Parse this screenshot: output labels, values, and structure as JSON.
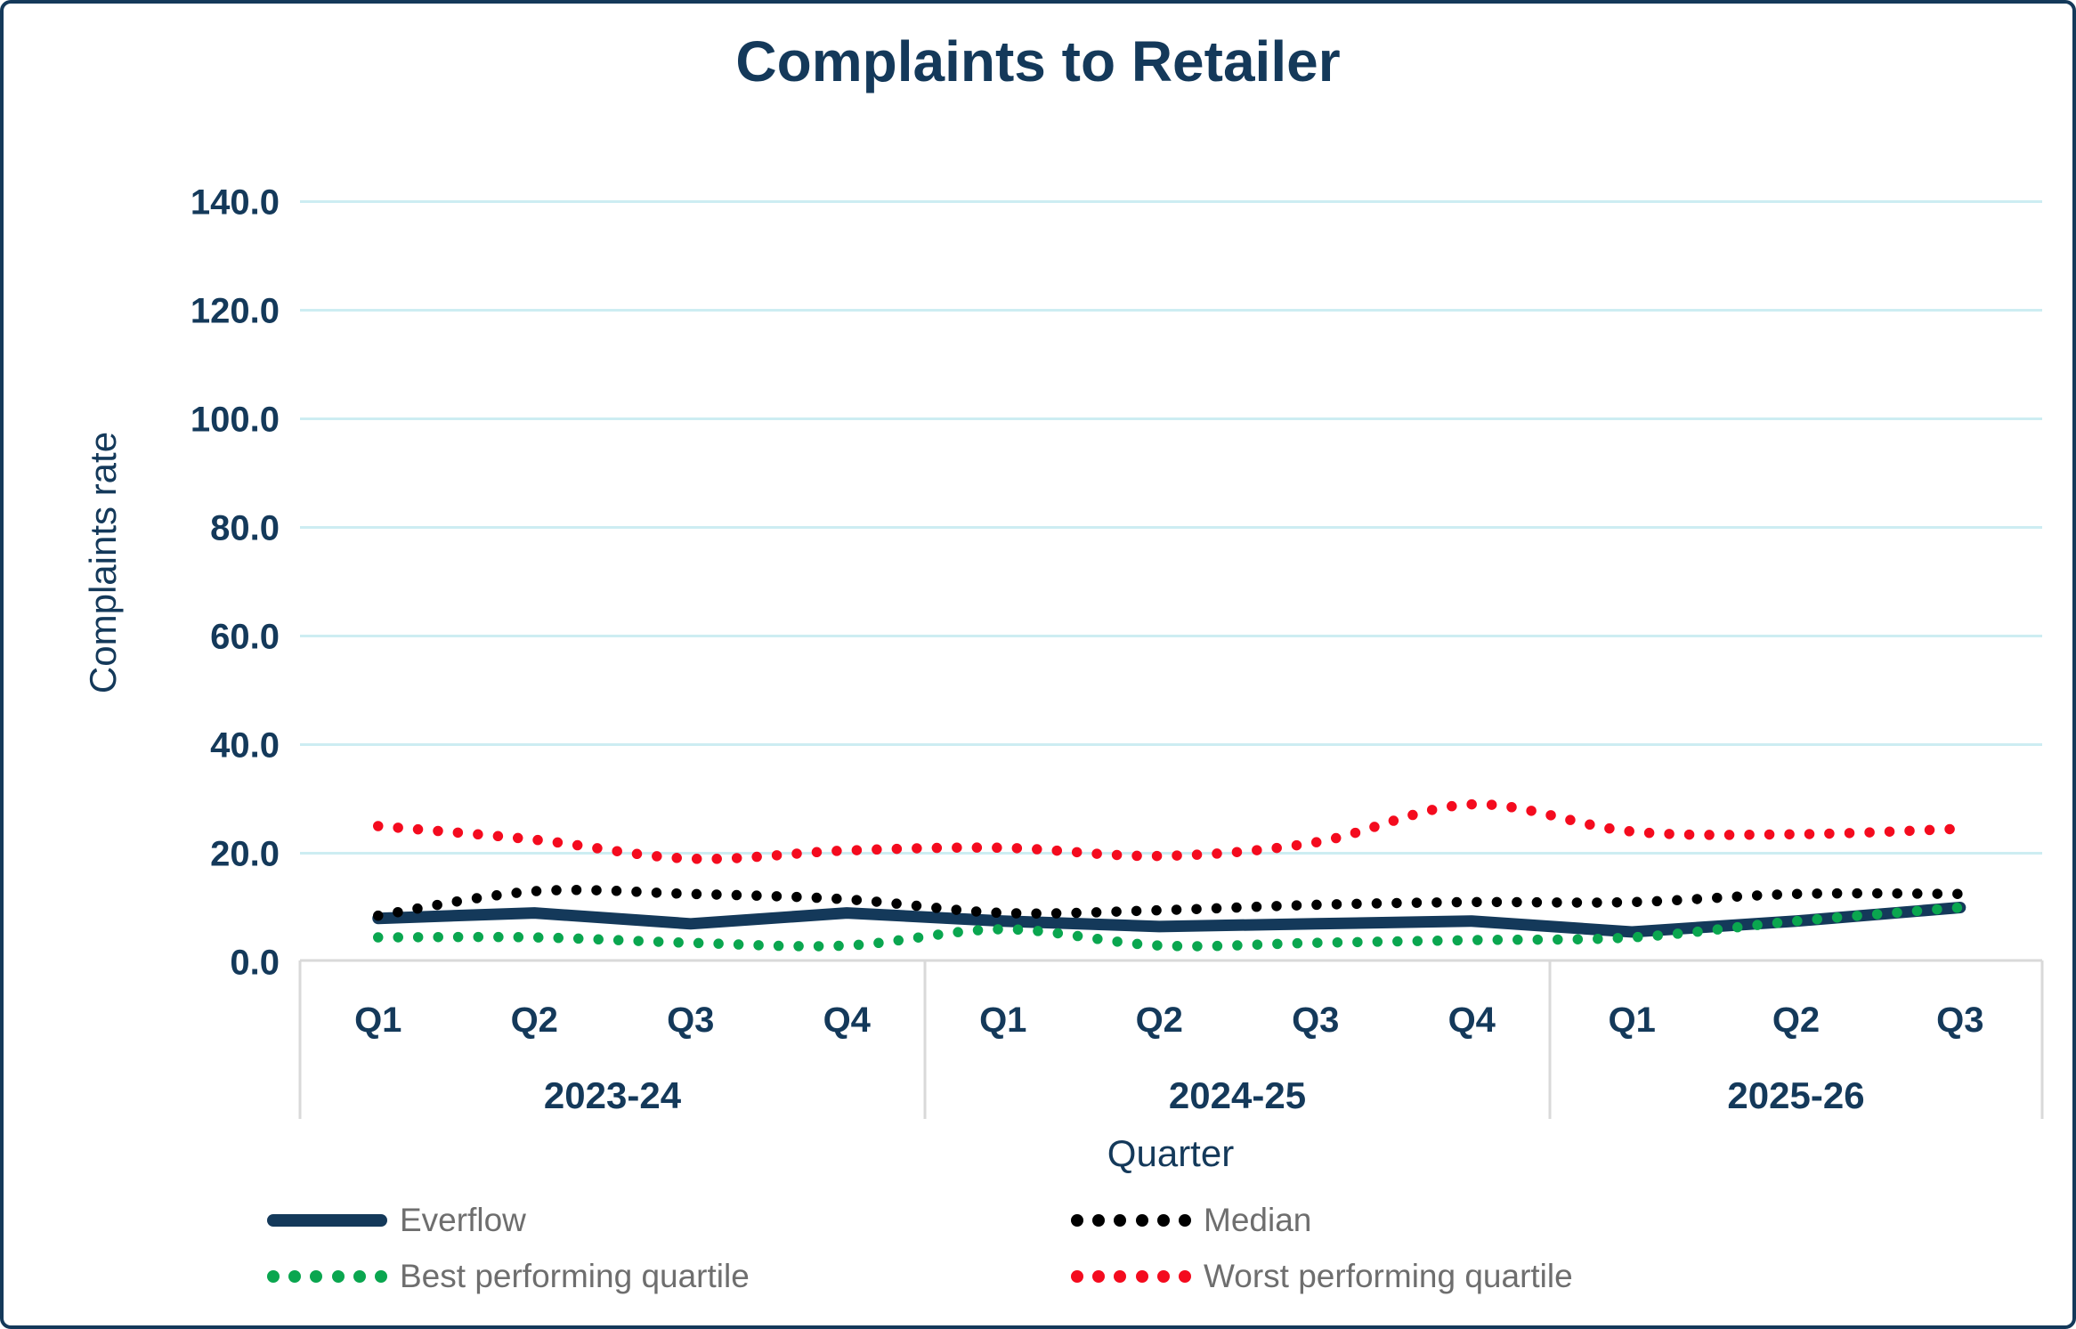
{
  "chart_data": {
    "type": "line",
    "title": "Complaints to Retailer",
    "ylabel": "Complaints rate",
    "xlabel": "Quarter",
    "ylim": [
      0,
      140
    ],
    "ytick_labels": [
      "0.0",
      "20.0",
      "40.0",
      "60.0",
      "80.0",
      "100.0",
      "120.0",
      "140.0"
    ],
    "grid": true,
    "legend_position": "bottom",
    "x_groups": [
      {
        "year": "2023-24",
        "quarters": [
          "Q1",
          "Q2",
          "Q3",
          "Q4"
        ]
      },
      {
        "year": "2024-25",
        "quarters": [
          "Q1",
          "Q2",
          "Q3",
          "Q4"
        ]
      },
      {
        "year": "2025-26",
        "quarters": [
          "Q1",
          "Q2",
          "Q3"
        ]
      }
    ],
    "categories": [
      "Q1",
      "Q2",
      "Q3",
      "Q4",
      "Q1",
      "Q2",
      "Q3",
      "Q4",
      "Q1",
      "Q2",
      "Q3"
    ],
    "series": [
      {
        "name": "Everflow",
        "style": "solid",
        "color": "#14395a",
        "values": [
          8,
          9,
          7,
          9,
          7.5,
          6.5,
          7,
          7.5,
          5.5,
          7.5,
          10
        ]
      },
      {
        "name": "Median",
        "style": "dotted",
        "color": "#000000",
        "values": [
          8.5,
          13,
          12.5,
          11.5,
          9,
          9.5,
          10.5,
          11,
          11,
          12.5,
          12.5
        ]
      },
      {
        "name": "Best performing quartile",
        "style": "dotted",
        "color": "#0aa64f",
        "values": [
          4.5,
          4.5,
          3.5,
          3,
          6,
          3,
          3.5,
          4,
          4.5,
          7.5,
          10
        ]
      },
      {
        "name": "Worst performing quartile",
        "style": "dotted",
        "color": "#f40b1e",
        "values": [
          25,
          22.5,
          19,
          20.5,
          21,
          19.5,
          22,
          29,
          24,
          23.5,
          24.5
        ]
      }
    ],
    "colors": {
      "navy": "#14395a",
      "gridline": "#cdedf2",
      "axis_line": "#d9d9d9",
      "legend_text": "#6e6e6e"
    }
  }
}
